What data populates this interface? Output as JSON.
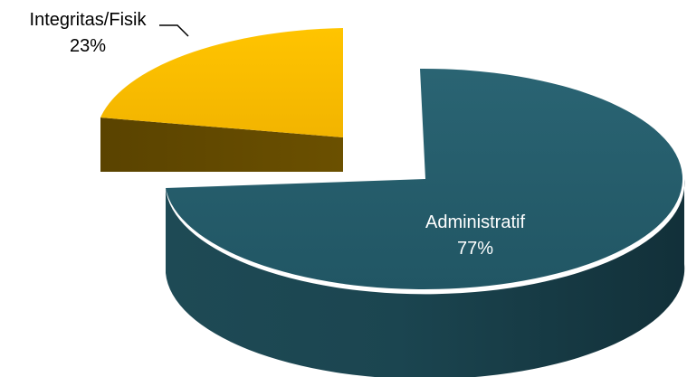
{
  "chart_data": {
    "type": "pie",
    "title": "",
    "three_d": true,
    "exploded": true,
    "slices": [
      {
        "label": "Administratif",
        "value": 77,
        "display": "77%",
        "color": "#245A67",
        "label_color": "#FFFFFF"
      },
      {
        "label": "Integritas/Fisik",
        "value": 23,
        "display": "23%",
        "color": "#F7B900",
        "label_color": "#000000"
      }
    ]
  }
}
